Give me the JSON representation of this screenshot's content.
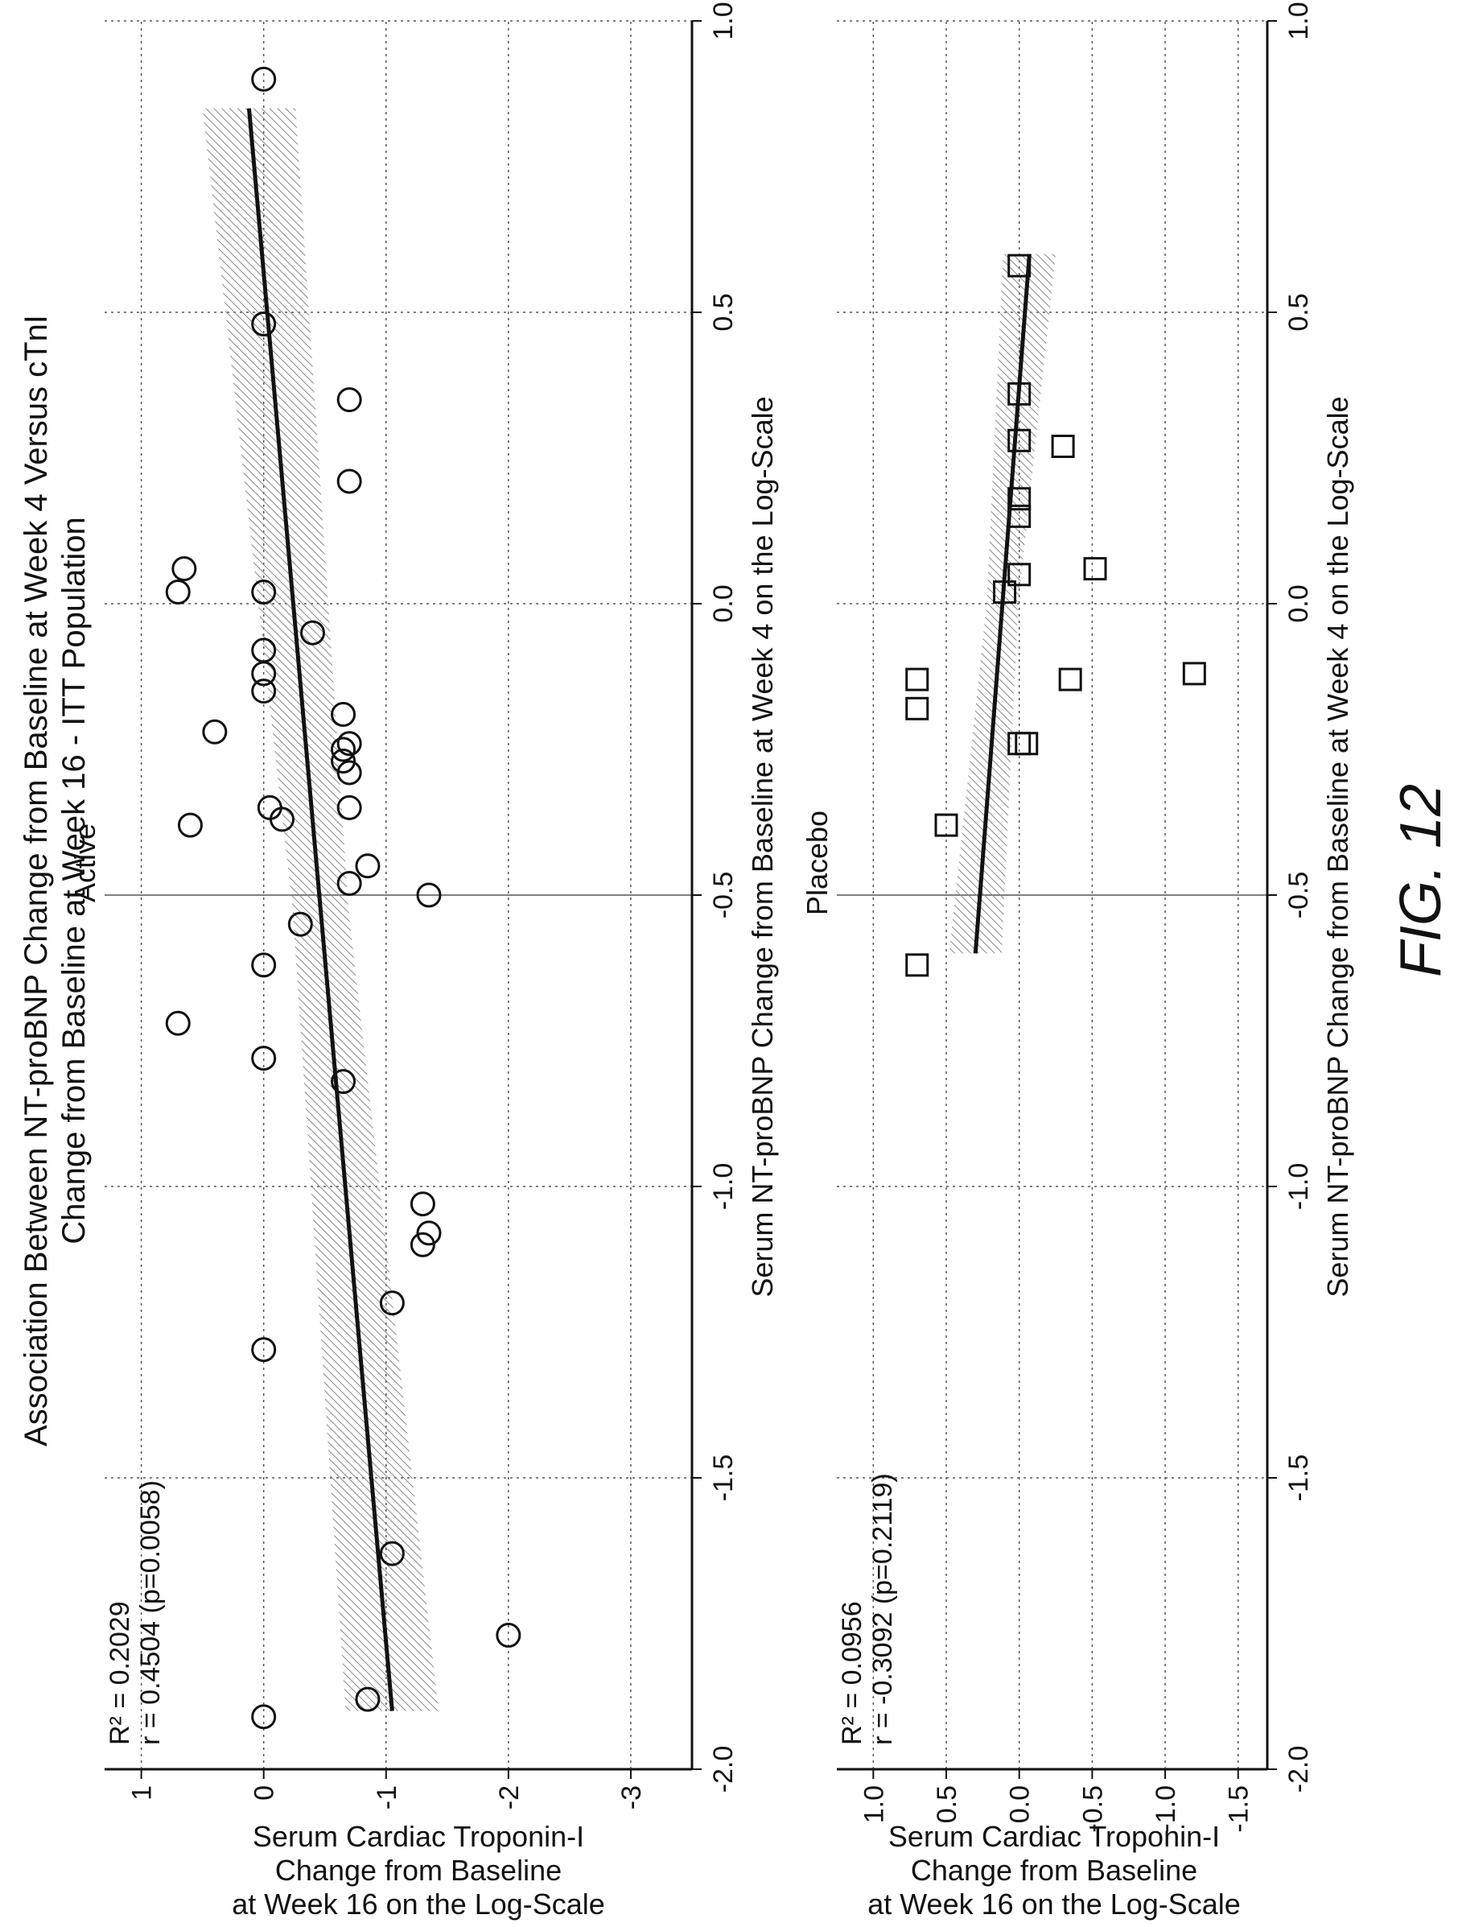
{
  "figure": {
    "title_line1": "Association Between NT-proBNP Change from Baseline at Week 4 Versus cTnI",
    "title_line2": "Change from Baseline at Week 16 - ITT Population",
    "caption": "FIG. 12"
  },
  "colors": {
    "ink": "#111111",
    "band": "#888888"
  },
  "chart_data": [
    {
      "type": "scatter",
      "title": "Active",
      "xlabel": "Serum NT-proBNP Change from Baseline at Week 4 on the Log-Scale",
      "ylabel": "Serum Cardiac Troponin-I Change from Baseline at Week 16 on the Log-Scale",
      "xlim": [
        -2.0,
        1.0
      ],
      "ylim": [
        -3.5,
        1.3
      ],
      "xticks": [
        -2.0,
        -1.5,
        -1.0,
        -0.5,
        0.0,
        0.5,
        1.0
      ],
      "xtick_labels": [
        "-2.0",
        "-1.5",
        "-1.0",
        "-0.5",
        "0.0",
        "0.5",
        "1.0"
      ],
      "yticks": [
        1,
        0,
        -1,
        -2,
        -3
      ],
      "ytick_labels": [
        "1",
        "0",
        "-1",
        "-2",
        "-3"
      ],
      "marker": "circle",
      "stats": {
        "r2": "R² = 0.2029",
        "r": "r = 0.4504 (p=0.0058)"
      },
      "fit_line": {
        "x": [
          -1.9,
          0.85
        ],
        "y": [
          -1.05,
          0.12
        ]
      },
      "points": [
        {
          "x": -1.91,
          "y": 0.0
        },
        {
          "x": -1.88,
          "y": -0.85
        },
        {
          "x": -1.77,
          "y": -2.0
        },
        {
          "x": -1.63,
          "y": -1.05
        },
        {
          "x": -1.28,
          "y": 0.0
        },
        {
          "x": -1.2,
          "y": -1.05
        },
        {
          "x": -1.1,
          "y": -1.3
        },
        {
          "x": -1.08,
          "y": -1.35
        },
        {
          "x": -1.03,
          "y": -1.3
        },
        {
          "x": -0.82,
          "y": -0.65
        },
        {
          "x": -0.78,
          "y": 0.0
        },
        {
          "x": -0.72,
          "y": 0.7
        },
        {
          "x": -0.62,
          "y": 0.0
        },
        {
          "x": -0.55,
          "y": -0.3
        },
        {
          "x": -0.5,
          "y": -1.35
        },
        {
          "x": -0.45,
          "y": -0.85
        },
        {
          "x": -0.48,
          "y": -0.7
        },
        {
          "x": -0.37,
          "y": -0.15
        },
        {
          "x": -0.35,
          "y": -0.05
        },
        {
          "x": -0.38,
          "y": 0.6
        },
        {
          "x": -0.35,
          "y": -0.7
        },
        {
          "x": -0.29,
          "y": -0.7
        },
        {
          "x": -0.27,
          "y": -0.65
        },
        {
          "x": -0.24,
          "y": -0.7
        },
        {
          "x": -0.25,
          "y": -0.65
        },
        {
          "x": -0.19,
          "y": -0.65
        },
        {
          "x": -0.22,
          "y": 0.4
        },
        {
          "x": -0.15,
          "y": 0.0
        },
        {
          "x": -0.12,
          "y": 0.0
        },
        {
          "x": -0.08,
          "y": 0.0
        },
        {
          "x": -0.05,
          "y": -0.4
        },
        {
          "x": 0.02,
          "y": 0.0
        },
        {
          "x": 0.02,
          "y": 0.7
        },
        {
          "x": 0.06,
          "y": 0.65
        },
        {
          "x": 0.21,
          "y": -0.7
        },
        {
          "x": 0.48,
          "y": 0.0
        },
        {
          "x": 0.35,
          "y": -0.7
        },
        {
          "x": 0.9,
          "y": 0.0
        }
      ]
    },
    {
      "type": "scatter",
      "title": "Placebo",
      "xlabel": "Serum NT-proBNP Change from Baseline at Week 4 on the Log-Scale",
      "ylabel": "Serum Cardiac Troponin-I Change from Baseline at Week 16 on the Log-Scale",
      "xlim": [
        -2.0,
        1.0
      ],
      "ylim": [
        -1.7,
        1.25
      ],
      "xticks": [
        -2.0,
        -1.5,
        -1.0,
        -0.5,
        0.0,
        0.5,
        1.0
      ],
      "xtick_labels": [
        "-2.0",
        "-1.5",
        "-1.0",
        "-0.5",
        "0.0",
        "0.5",
        "1.0"
      ],
      "yticks": [
        1.0,
        0.5,
        0.0,
        -0.5,
        -1.0,
        -1.5
      ],
      "ytick_labels": [
        "1.0",
        "0.5",
        "0.0",
        "-0.5",
        "-1.0",
        "-1.5"
      ],
      "marker": "square",
      "stats": {
        "r2": "R² = 0.0956",
        "r": "r = -0.3092 (p=0.2119)"
      },
      "fit_line": {
        "x": [
          -0.6,
          0.6
        ],
        "y": [
          0.3,
          -0.07
        ]
      },
      "points": [
        {
          "x": -0.62,
          "y": 0.7
        },
        {
          "x": -0.38,
          "y": 0.5
        },
        {
          "x": -0.24,
          "y": 0.0
        },
        {
          "x": -0.24,
          "y": -0.05
        },
        {
          "x": -0.18,
          "y": 0.7
        },
        {
          "x": -0.13,
          "y": 0.7
        },
        {
          "x": -0.13,
          "y": -0.35
        },
        {
          "x": -0.12,
          "y": -1.2
        },
        {
          "x": 0.02,
          "y": 0.1
        },
        {
          "x": 0.05,
          "y": 0.0
        },
        {
          "x": 0.06,
          "y": -0.52
        },
        {
          "x": 0.15,
          "y": 0.0
        },
        {
          "x": 0.18,
          "y": 0.0
        },
        {
          "x": 0.27,
          "y": -0.3
        },
        {
          "x": 0.28,
          "y": 0.0
        },
        {
          "x": 0.36,
          "y": 0.0
        },
        {
          "x": 0.58,
          "y": 0.0
        }
      ]
    }
  ]
}
